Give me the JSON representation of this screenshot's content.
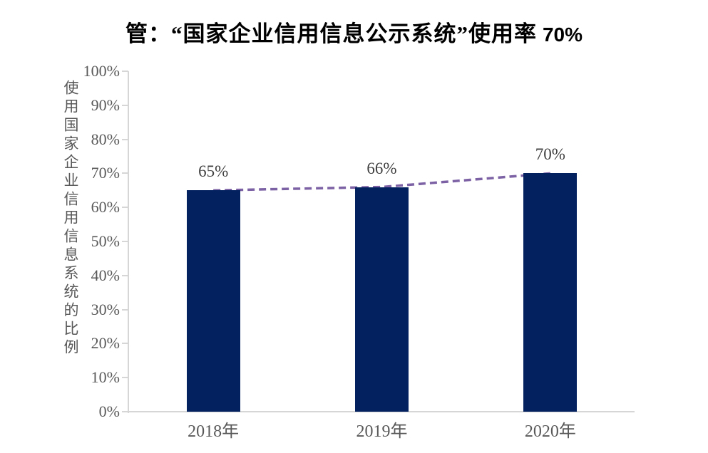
{
  "title": {
    "prefix": "管：“国家企业信用信息公示系统”使用率",
    "highlight": "70%"
  },
  "chart_data": {
    "type": "bar",
    "title": "管：“国家企业信用信息公示系统”使用率 70%",
    "categories": [
      "2018年",
      "2019年",
      "2020年"
    ],
    "series": [
      {
        "name": "bar-usage-rate",
        "type": "bar",
        "values": [
          65,
          66,
          70
        ]
      },
      {
        "name": "trend-dashed-line",
        "type": "line",
        "values": [
          65,
          66,
          70
        ],
        "dashed": true
      }
    ],
    "data_labels": [
      "65%",
      "66%",
      "70%"
    ],
    "xlabel": "",
    "ylabel": "使用国家企业信用信息系统的比例",
    "ylim": [
      0,
      100
    ],
    "yticks": [
      {
        "value": 0,
        "label": "0%"
      },
      {
        "value": 10,
        "label": "10%"
      },
      {
        "value": 20,
        "label": "20%"
      },
      {
        "value": 30,
        "label": "30%"
      },
      {
        "value": 40,
        "label": "40%"
      },
      {
        "value": 50,
        "label": "50%"
      },
      {
        "value": 60,
        "label": "60%"
      },
      {
        "value": 70,
        "label": "70%"
      },
      {
        "value": 80,
        "label": "80%"
      },
      {
        "value": 90,
        "label": "90%"
      },
      {
        "value": 100,
        "label": "100%"
      }
    ],
    "grid": false,
    "legend_position": "none"
  },
  "colors": {
    "bar": "#03215e",
    "trend_line": "#7c62a5",
    "axis": "#d6d6d6",
    "tick_text": "#595959",
    "data_label_text": "#3f3f3f",
    "title_text": "#000000",
    "background": "#ffffff"
  }
}
